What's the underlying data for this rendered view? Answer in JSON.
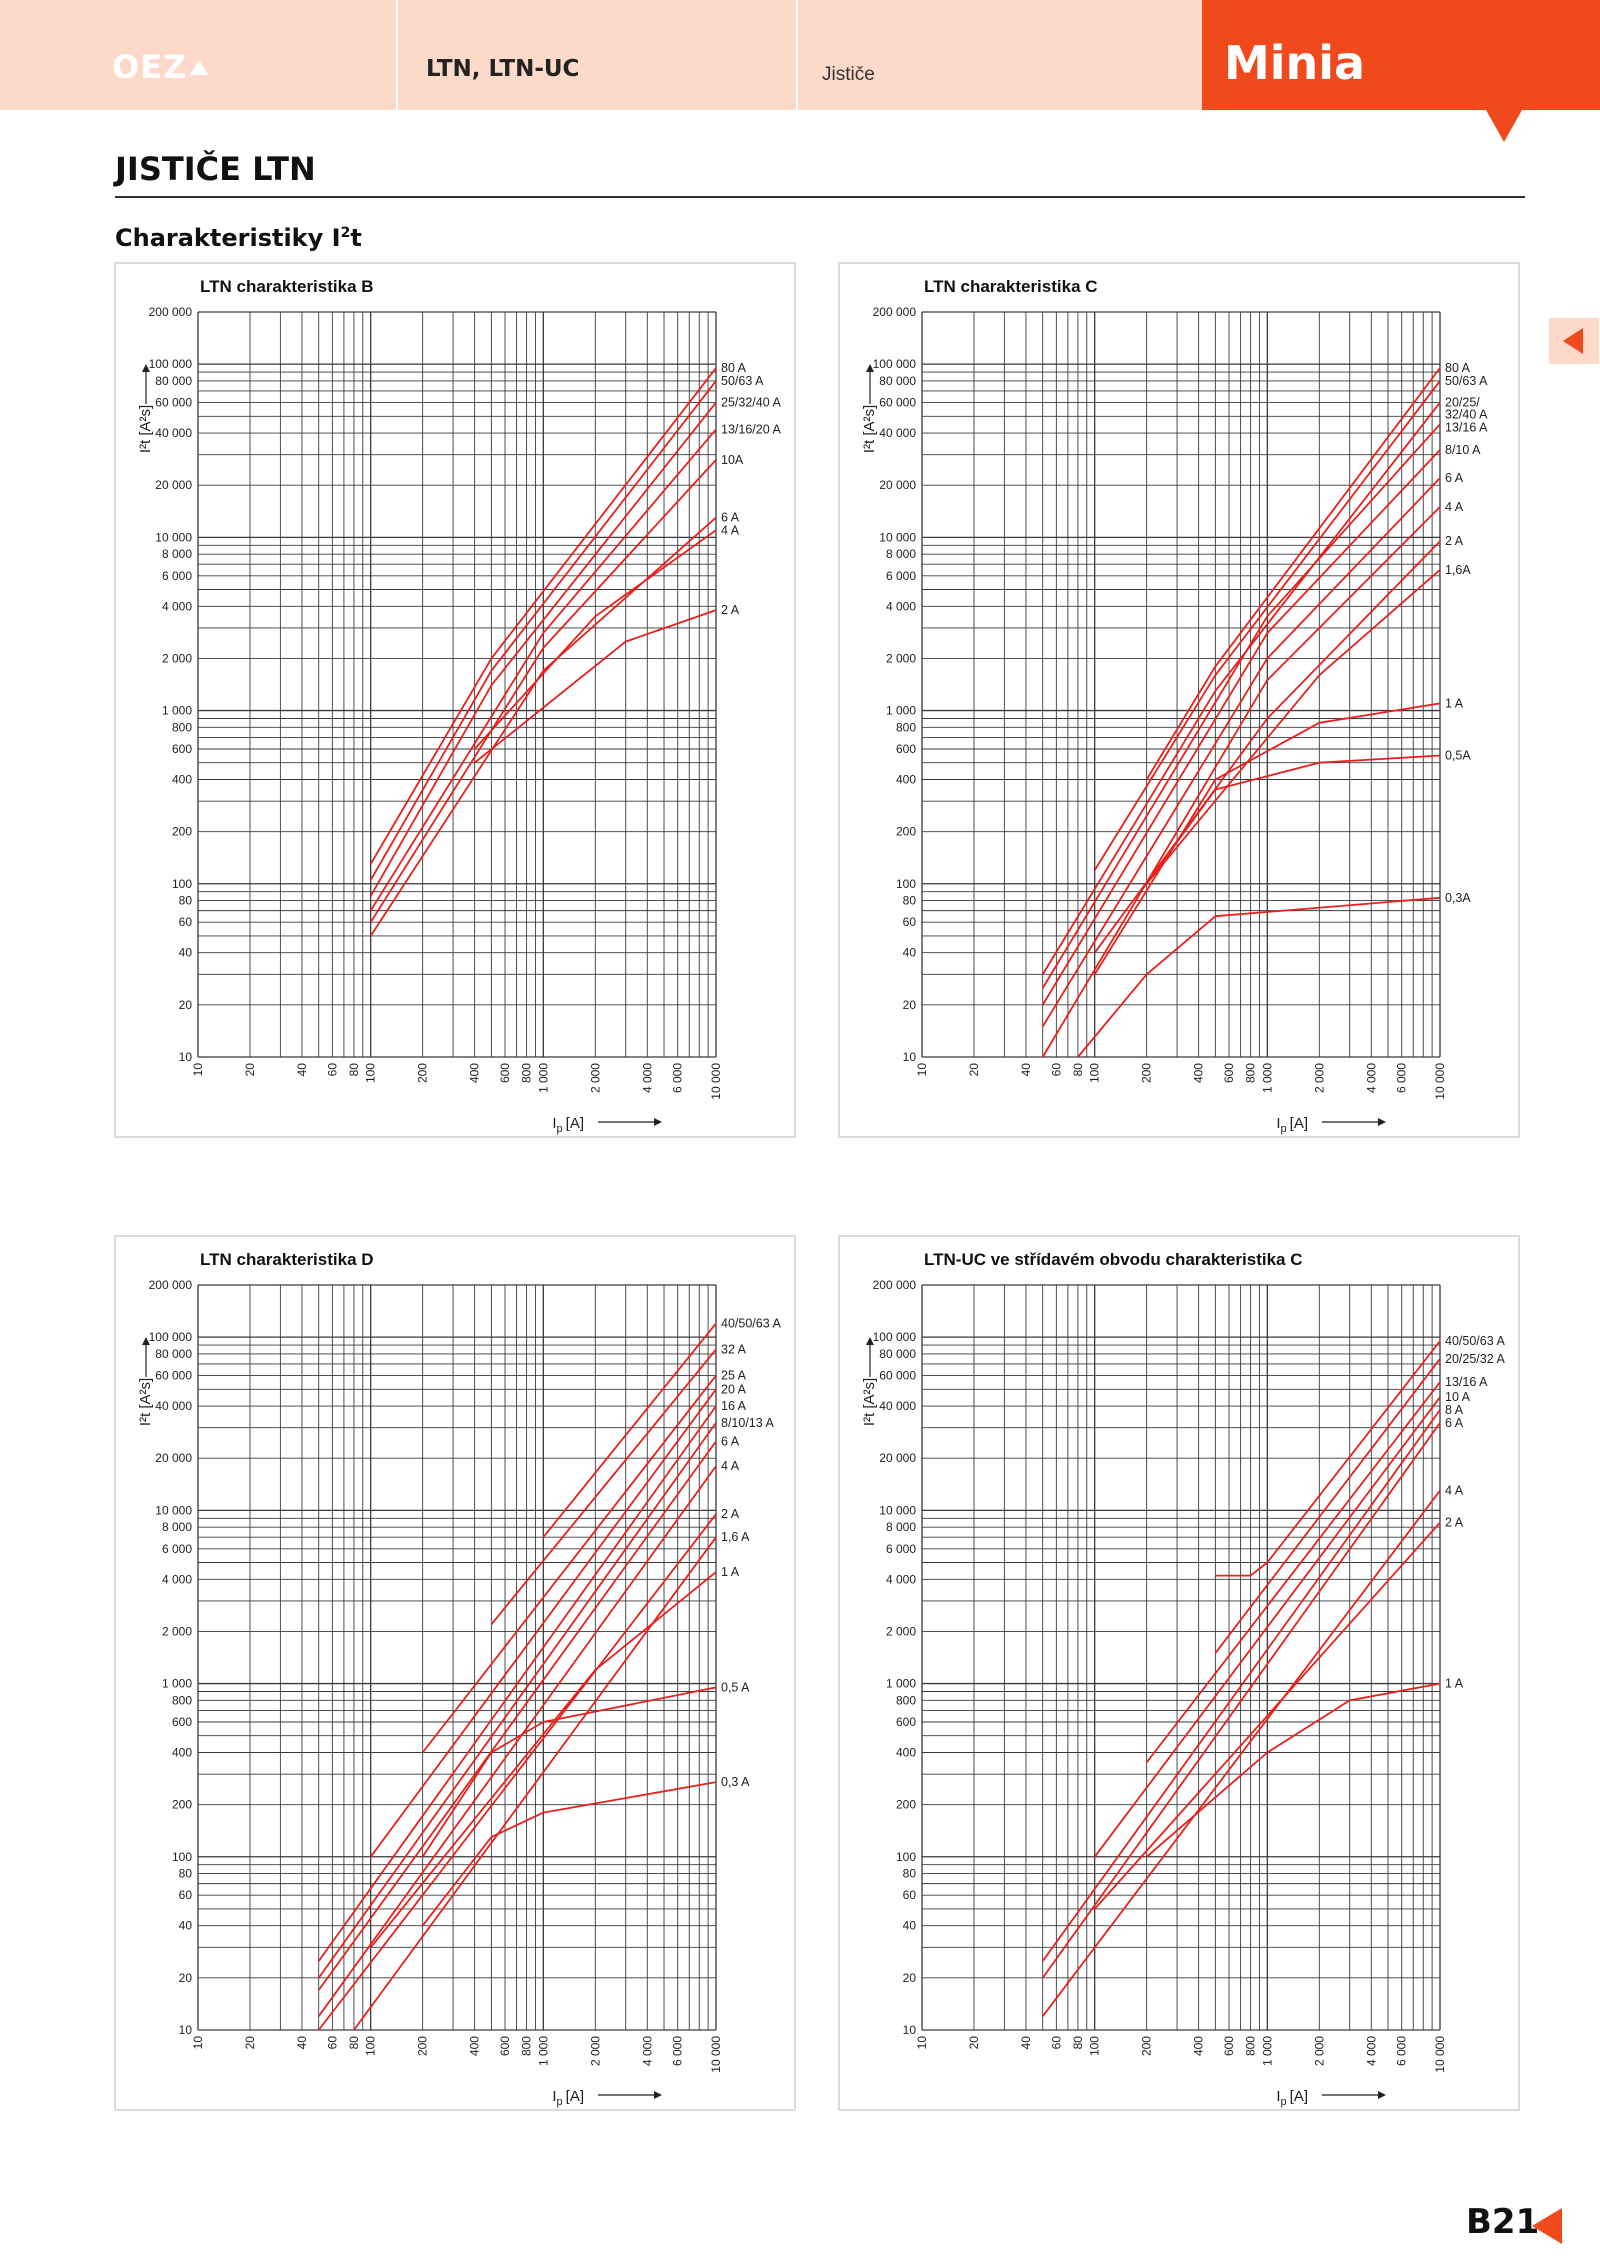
{
  "header": {
    "logo_text": "OEZ",
    "title": "LTN, LTN-UC",
    "subtitle": "Jističe",
    "tab_label": "Minia"
  },
  "page": {
    "title": "JISTIČE LTN",
    "section_title": "Charakteristiky I",
    "section_title_sup": "2",
    "section_title_suffix": "t",
    "page_number": "B21"
  },
  "colors": {
    "accent": "#f04a1c",
    "header_bg": "#fcd9c9",
    "curve": "#e8201c",
    "grid": "#333333"
  },
  "icons": {
    "logo_mark": "triangle-icon",
    "side_tab": "arrow-left-icon",
    "page_arrow": "arrow-left-icon"
  },
  "chart_data": [
    {
      "type": "line",
      "title": "LTN charakteristika B",
      "xlabel": "I",
      "xlabel_sub": "p",
      "xlabel_unit": "[A]",
      "ylabel": "I²t [A²s]",
      "x_scale": "log",
      "y_scale": "log",
      "xlim": [
        10,
        10000
      ],
      "ylim": [
        10,
        200000
      ],
      "x_ticks": [
        "10",
        "20",
        "40",
        "60",
        "80",
        "100",
        "200",
        "400",
        "600",
        "800",
        "1 000",
        "2 000",
        "4 000",
        "6 000",
        "10 000"
      ],
      "y_ticks": [
        "10",
        "20",
        "40",
        "60",
        "80",
        "100",
        "200",
        "400",
        "600",
        "800",
        "1 000",
        "2 000",
        "4 000",
        "6 000",
        "8 000",
        "10 000",
        "20 000",
        "40 000",
        "60 000",
        "80 000",
        "100 000",
        "200 000"
      ],
      "series": [
        {
          "name": "80 A",
          "points": [
            [
              100,
              130
            ],
            [
              500,
              2000
            ],
            [
              10000,
              95000
            ]
          ]
        },
        {
          "name": "50/63 A",
          "points": [
            [
              100,
              105
            ],
            [
              500,
              1700
            ],
            [
              10000,
              80000
            ]
          ]
        },
        {
          "name": "25/32/40 A",
          "points": [
            [
              100,
              85
            ],
            [
              500,
              1400
            ],
            [
              10000,
              60000
            ]
          ]
        },
        {
          "name": "13/16/20 A",
          "points": [
            [
              100,
              70
            ],
            [
              1000,
              2800
            ],
            [
              10000,
              42000
            ]
          ]
        },
        {
          "name": "10A",
          "points": [
            [
              100,
              60
            ],
            [
              1000,
              2300
            ],
            [
              10000,
              28000
            ]
          ]
        },
        {
          "name": "6 A",
          "points": [
            [
              100,
              50
            ],
            [
              1000,
              1700
            ],
            [
              10000,
              13000
            ]
          ]
        },
        {
          "name": "4 A",
          "points": [
            [
              400,
              600
            ],
            [
              2000,
              3500
            ],
            [
              10000,
              11000
            ]
          ]
        },
        {
          "name": "2 A",
          "points": [
            [
              400,
              500
            ],
            [
              3000,
              2500
            ],
            [
              10000,
              3800
            ]
          ]
        }
      ]
    },
    {
      "type": "line",
      "title": "LTN charakteristika C",
      "xlabel": "I",
      "xlabel_sub": "p",
      "xlabel_unit": "[A]",
      "ylabel": "I²t [A²s]",
      "x_scale": "log",
      "y_scale": "log",
      "xlim": [
        10,
        10000
      ],
      "ylim": [
        10,
        200000
      ],
      "x_ticks": [
        "10",
        "20",
        "40",
        "60",
        "80",
        "100",
        "200",
        "400",
        "600",
        "800",
        "1 000",
        "2 000",
        "4 000",
        "6 000",
        "10 000"
      ],
      "y_ticks": [
        "10",
        "20",
        "40",
        "60",
        "80",
        "100",
        "200",
        "400",
        "600",
        "800",
        "1 000",
        "2 000",
        "4 000",
        "6 000",
        "8 000",
        "10 000",
        "20 000",
        "40 000",
        "60 000",
        "80 000",
        "100 000",
        "200 000"
      ],
      "series": [
        {
          "name": "80 A",
          "points": [
            [
              200,
              400
            ],
            [
              500,
              1800
            ],
            [
              10000,
              95000
            ]
          ]
        },
        {
          "name": "50/63 A",
          "points": [
            [
              100,
              120
            ],
            [
              500,
              1600
            ],
            [
              10000,
              80000
            ]
          ]
        },
        {
          "name": "20/25/ 32/40 A",
          "points": [
            [
              50,
              30
            ],
            [
              500,
              1300
            ],
            [
              10000,
              60000
            ]
          ]
        },
        {
          "name": "13/16 A",
          "points": [
            [
              50,
              25
            ],
            [
              1000,
              3500
            ],
            [
              10000,
              45000
            ]
          ]
        },
        {
          "name": "8/10 A",
          "points": [
            [
              50,
              20
            ],
            [
              1000,
              2800
            ],
            [
              10000,
              32000
            ]
          ]
        },
        {
          "name": "6 A",
          "points": [
            [
              50,
              15
            ],
            [
              1000,
              2000
            ],
            [
              10000,
              22000
            ]
          ]
        },
        {
          "name": "4 A",
          "points": [
            [
              50,
              10
            ],
            [
              1000,
              1500
            ],
            [
              10000,
              15000
            ]
          ]
        },
        {
          "name": "2 A",
          "points": [
            [
              100,
              40
            ],
            [
              1000,
              900
            ],
            [
              10000,
              9500
            ]
          ]
        },
        {
          "name": "1,6A",
          "points": [
            [
              200,
              100
            ],
            [
              2000,
              1600
            ],
            [
              10000,
              6500
            ]
          ]
        },
        {
          "name": "1 A",
          "points": [
            [
              100,
              30
            ],
            [
              500,
              400
            ],
            [
              2000,
              850
            ],
            [
              10000,
              1100
            ]
          ]
        },
        {
          "name": "0,5A",
          "points": [
            [
              200,
              100
            ],
            [
              500,
              350
            ],
            [
              2000,
              500
            ],
            [
              10000,
              550
            ]
          ]
        },
        {
          "name": "0,3A",
          "points": [
            [
              80,
              10
            ],
            [
              200,
              30
            ],
            [
              500,
              65
            ],
            [
              10000,
              83
            ]
          ]
        }
      ]
    },
    {
      "type": "line",
      "title": "LTN charakteristika D",
      "xlabel": "I",
      "xlabel_sub": "p",
      "xlabel_unit": "[A]",
      "ylabel": "I²t [A²s]",
      "x_scale": "log",
      "y_scale": "log",
      "xlim": [
        10,
        10000
      ],
      "ylim": [
        10,
        200000
      ],
      "x_ticks": [
        "10",
        "20",
        "40",
        "60",
        "80",
        "100",
        "200",
        "400",
        "600",
        "800",
        "1 000",
        "2 000",
        "4 000",
        "6 000",
        "10 000"
      ],
      "y_ticks": [
        "10",
        "20",
        "40",
        "60",
        "80",
        "100",
        "200",
        "400",
        "600",
        "800",
        "1 000",
        "2 000",
        "4 000",
        "6 000",
        "8 000",
        "10 000",
        "20 000",
        "40 000",
        "60 000",
        "80 000",
        "100 000",
        "200 000"
      ],
      "series": [
        {
          "name": "40/50/63 A",
          "points": [
            [
              1000,
              7000
            ],
            [
              10000,
              120000
            ]
          ]
        },
        {
          "name": "32 A",
          "points": [
            [
              500,
              2200
            ],
            [
              10000,
              85000
            ]
          ]
        },
        {
          "name": "25 A",
          "points": [
            [
              200,
              400
            ],
            [
              10000,
              60000
            ]
          ]
        },
        {
          "name": "20 A",
          "points": [
            [
              100,
              100
            ],
            [
              10000,
              50000
            ]
          ]
        },
        {
          "name": "16 A",
          "points": [
            [
              50,
              25
            ],
            [
              10000,
              40000
            ]
          ]
        },
        {
          "name": "8/10/13 A",
          "points": [
            [
              50,
              20
            ],
            [
              10000,
              32000
            ]
          ]
        },
        {
          "name": "6 A",
          "points": [
            [
              50,
              17
            ],
            [
              10000,
              25000
            ]
          ]
        },
        {
          "name": "4 A",
          "points": [
            [
              50,
              12
            ],
            [
              10000,
              18000
            ]
          ]
        },
        {
          "name": "2 A",
          "points": [
            [
              50,
              10
            ],
            [
              10000,
              9500
            ]
          ]
        },
        {
          "name": "1,6 A",
          "points": [
            [
              80,
              10
            ],
            [
              10000,
              7000
            ]
          ]
        },
        {
          "name": "1 A",
          "points": [
            [
              100,
              30
            ],
            [
              2000,
              1200
            ],
            [
              10000,
              4400
            ]
          ]
        },
        {
          "name": "0,5 A",
          "points": [
            [
              200,
              100
            ],
            [
              500,
              400
            ],
            [
              1000,
              600
            ],
            [
              10000,
              950
            ]
          ]
        },
        {
          "name": "0,3 A",
          "points": [
            [
              200,
              40
            ],
            [
              500,
              130
            ],
            [
              1000,
              180
            ],
            [
              10000,
              270
            ]
          ]
        }
      ]
    },
    {
      "type": "line",
      "title": "LTN-UC ve střídavém obvodu charakteristika C",
      "xlabel": "I",
      "xlabel_sub": "p",
      "xlabel_unit": "[A]",
      "ylabel": "I²t [A²s]",
      "x_scale": "log",
      "y_scale": "log",
      "xlim": [
        10,
        10000
      ],
      "ylim": [
        10,
        200000
      ],
      "x_ticks": [
        "10",
        "20",
        "40",
        "60",
        "80",
        "100",
        "200",
        "400",
        "600",
        "800",
        "1 000",
        "2 000",
        "4 000",
        "6 000",
        "10 000"
      ],
      "y_ticks": [
        "10",
        "20",
        "40",
        "60",
        "80",
        "100",
        "200",
        "400",
        "600",
        "800",
        "1 000",
        "2 000",
        "4 000",
        "6 000",
        "8 000",
        "10 000",
        "20 000",
        "40 000",
        "60 000",
        "80 000",
        "100 000",
        "200 000"
      ],
      "series": [
        {
          "name": "40/50/63 A",
          "points": [
            [
              500,
              4200
            ],
            [
              800,
              4200
            ],
            [
              1000,
              5000
            ],
            [
              10000,
              95000
            ]
          ]
        },
        {
          "name": "20/25/32 A",
          "points": [
            [
              500,
              1500
            ],
            [
              10000,
              75000
            ]
          ]
        },
        {
          "name": "13/16 A",
          "points": [
            [
              200,
              350
            ],
            [
              10000,
              55000
            ]
          ]
        },
        {
          "name": "10 A",
          "points": [
            [
              100,
              100
            ],
            [
              10000,
              45000
            ]
          ]
        },
        {
          "name": "8 A",
          "points": [
            [
              50,
              25
            ],
            [
              10000,
              38000
            ]
          ]
        },
        {
          "name": "6 A",
          "points": [
            [
              50,
              20
            ],
            [
              10000,
              32000
            ]
          ]
        },
        {
          "name": "4 A",
          "points": [
            [
              50,
              12
            ],
            [
              10000,
              13000
            ]
          ]
        },
        {
          "name": "2 A",
          "points": [
            [
              100,
              50
            ],
            [
              10000,
              8500
            ]
          ]
        },
        {
          "name": "1 A",
          "points": [
            [
              200,
              100
            ],
            [
              1000,
              400
            ],
            [
              3000,
              800
            ],
            [
              10000,
              1000
            ]
          ]
        }
      ]
    }
  ]
}
